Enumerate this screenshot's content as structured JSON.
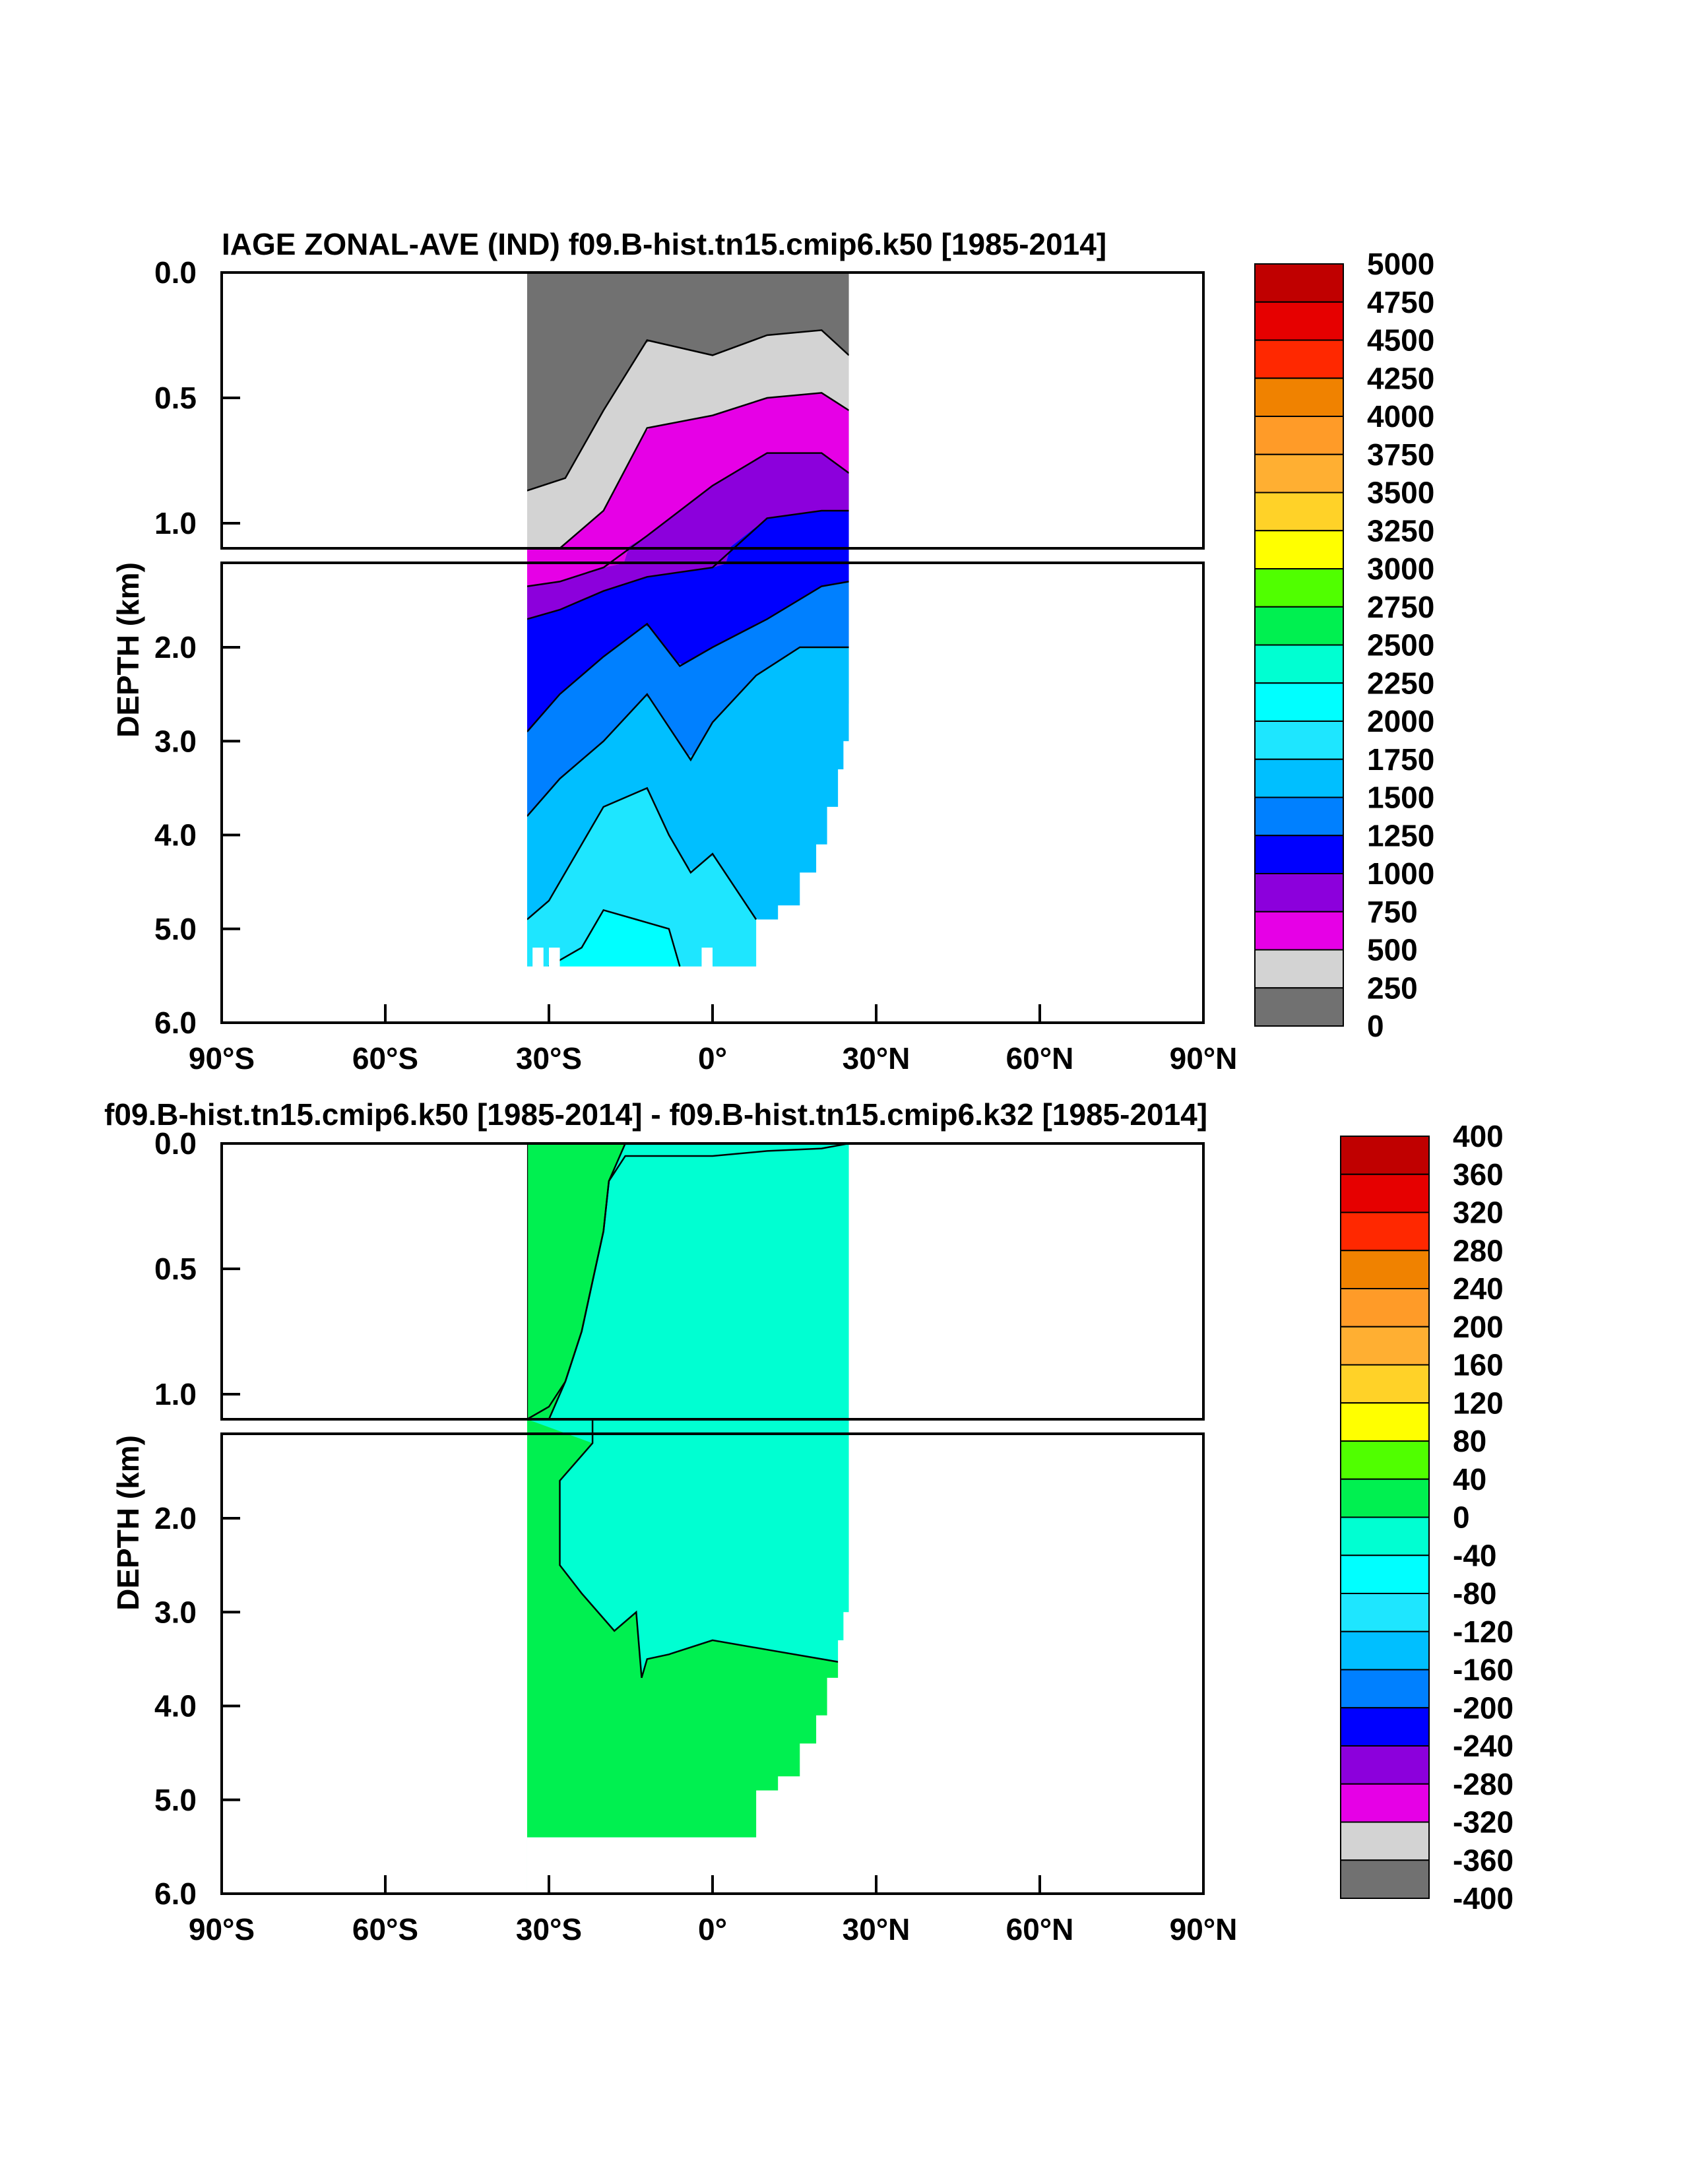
{
  "palette": {
    "base": [
      "#717171",
      "#d3d3d3",
      "#e600e6",
      "#8c00dc",
      "#0000ff",
      "#0080ff",
      "#00bfff",
      "#1ee6ff",
      "#00ffff",
      "#00ffd2",
      "#00f050",
      "#50ff00",
      "#ffff00",
      "#ffd228",
      "#ffaf32",
      "#ff9b28",
      "#f08200",
      "#ff2800",
      "#e60000",
      "#c00000"
    ],
    "outline": "#000000",
    "background": "#ffffff"
  },
  "chart_data": [
    {
      "type": "heatmap",
      "subtype": "filled-contour depth-latitude section",
      "title": "IAGE ZONAL-AVE (IND) f09.B-hist.tn15.cmip6.k50 [1985-2014]",
      "ylabel": "DEPTH (km)",
      "xlabel": "",
      "x_ticks": [
        "90°S",
        "60°S",
        "30°S",
        "0°",
        "30°N",
        "60°N",
        "90°N"
      ],
      "xlim": [
        -90,
        90
      ],
      "y_ticks_upper": [
        "0.0",
        "0.5",
        "1.0"
      ],
      "y_ticks_lower": [
        "2.0",
        "3.0",
        "4.0",
        "5.0",
        "6.0"
      ],
      "ylim": [
        0,
        6
      ],
      "y_break_km": 1.1,
      "grid": false,
      "colorbar_labels": [
        "5000",
        "4750",
        "4500",
        "4250",
        "4000",
        "3750",
        "3500",
        "3250",
        "3000",
        "2750",
        "2500",
        "2250",
        "2000",
        "1750",
        "1500",
        "1250",
        "1000",
        "750",
        "500",
        "250",
        "0"
      ],
      "lat_range": [
        -34,
        25
      ],
      "bottom_depth_km": 5.4,
      "contour_depths": [
        {
          "level": 250,
          "lat": [
            -34,
            -27,
            -20,
            -12,
            0,
            10,
            20,
            25
          ],
          "depth_km": [
            0.87,
            0.82,
            0.55,
            0.27,
            0.33,
            0.25,
            0.23,
            0.33
          ]
        },
        {
          "level": 500,
          "lat": [
            -34,
            -28,
            -20,
            -12,
            0,
            10,
            20,
            25
          ],
          "depth_km": [
            1.1,
            1.1,
            0.95,
            0.62,
            0.57,
            0.5,
            0.48,
            0.55
          ]
        },
        {
          "level": 750,
          "lat": [
            -34,
            -28,
            -20,
            -12,
            0,
            10,
            20,
            25
          ],
          "depth_km": [
            1.35,
            1.3,
            1.15,
            1.05,
            0.85,
            0.72,
            0.72,
            0.8
          ]
        },
        {
          "level": 1000,
          "lat": [
            -34,
            -28,
            -20,
            -12,
            0,
            10,
            20,
            25
          ],
          "depth_km": [
            1.7,
            1.6,
            1.4,
            1.25,
            1.15,
            0.98,
            0.95,
            0.95
          ]
        },
        {
          "level": 1250,
          "lat": [
            -34,
            -28,
            -20,
            -12,
            -6,
            0,
            10,
            20,
            25
          ],
          "depth_km": [
            2.9,
            2.5,
            2.1,
            1.75,
            2.2,
            2.0,
            1.7,
            1.35,
            1.3
          ]
        },
        {
          "level": 1500,
          "lat": [
            -34,
            -28,
            -20,
            -12,
            -4,
            0,
            8,
            16,
            25
          ],
          "depth_km": [
            3.8,
            3.4,
            3.0,
            2.5,
            3.2,
            2.8,
            2.3,
            2.0,
            2.0
          ]
        },
        {
          "level": 1750,
          "lat": [
            -34,
            -30,
            -24,
            -20,
            -12,
            -8,
            -4,
            0,
            8
          ],
          "depth_km": [
            4.9,
            4.7,
            4.1,
            3.7,
            3.5,
            4.0,
            4.4,
            4.2,
            4.9
          ]
        },
        {
          "level": 2000,
          "lat": [
            -30,
            -24,
            -20,
            -14,
            -8,
            -6
          ],
          "depth_km": [
            5.4,
            5.2,
            4.8,
            4.9,
            5.0,
            5.4
          ]
        }
      ],
      "notes_colors_present": [
        "0-250",
        "250-500",
        "500-750",
        "750-1000",
        "1000-1250",
        "1250-1500",
        "1500-1750",
        "1750-2000",
        "2000-2250"
      ]
    },
    {
      "type": "heatmap",
      "subtype": "filled-contour depth-latitude section (difference)",
      "title": "f09.B-hist.tn15.cmip6.k50 [1985-2014] - f09.B-hist.tn15.cmip6.k32 [1985-2014]",
      "ylabel": "DEPTH (km)",
      "xlabel": "",
      "x_ticks": [
        "90°S",
        "60°S",
        "30°S",
        "0°",
        "30°N",
        "60°N",
        "90°N"
      ],
      "xlim": [
        -90,
        90
      ],
      "y_ticks_upper": [
        "0.0",
        "0.5",
        "1.0"
      ],
      "y_ticks_lower": [
        "2.0",
        "3.0",
        "4.0",
        "5.0",
        "6.0"
      ],
      "ylim": [
        0,
        6
      ],
      "y_break_km": 1.1,
      "grid": false,
      "colorbar_labels": [
        "400",
        "360",
        "320",
        "280",
        "240",
        "200",
        "160",
        "120",
        "80",
        "40",
        "0",
        "-40",
        "-80",
        "-120",
        "-160",
        "-200",
        "-240",
        "-280",
        "-320",
        "-360",
        "-400"
      ],
      "lat_range": [
        -34,
        25
      ],
      "bottom_depth_km": 5.4,
      "regions": [
        {
          "range": "0 to 40",
          "description": "west (30°S side) upper ocean and deep ocean below ~3.3 km"
        },
        {
          "range": "-40 to 0",
          "description": "central/northern upper and intermediate ocean"
        }
      ],
      "zero_contour_upper": {
        "lat": [
          -34,
          -30,
          -27,
          -24,
          -22,
          -20,
          -19,
          -16,
          0,
          10,
          20,
          25
        ],
        "depth_km": [
          1.1,
          1.05,
          0.95,
          0.75,
          0.55,
          0.35,
          0.15,
          0.05,
          0.05,
          0.03,
          0.02,
          0.0
        ]
      },
      "zero_contour_lower": {
        "lat": [
          -22,
          -28,
          -28,
          -24,
          -18,
          -14,
          -13,
          -12,
          -8,
          0,
          10,
          20,
          25
        ],
        "depth_km": [
          1.2,
          1.6,
          2.5,
          2.8,
          3.2,
          3.0,
          3.7,
          3.5,
          3.45,
          3.3,
          3.4,
          3.5,
          3.55
        ]
      }
    }
  ]
}
